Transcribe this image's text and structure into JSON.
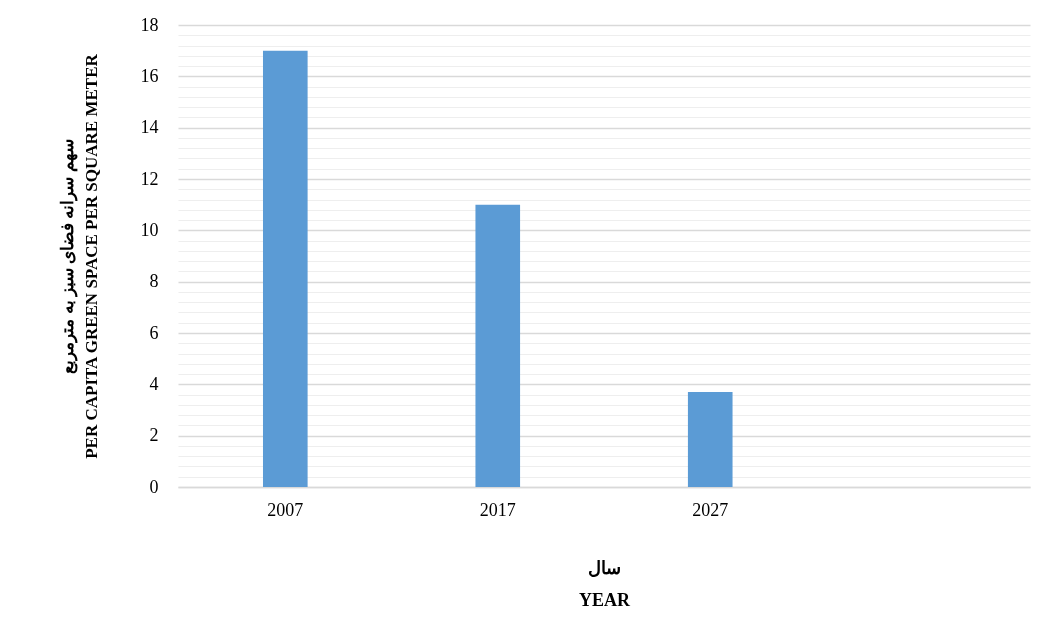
{
  "chart_data": {
    "type": "bar",
    "xlabel": "سال\nYEAR",
    "ylabel": "سهم سرانه فضای سبز به مترمربع\nPER CAPITA GREEN SPACE PER SQUARE METER",
    "categories": [
      "2007",
      "2017",
      "2027",
      null
    ],
    "values": [
      17,
      11,
      3.7,
      null
    ],
    "color": "#5b9bd5",
    "ylim": [
      0,
      18
    ],
    "yticks": [
      0,
      {
        "value": 0.4,
        "label": null
      },
      {
        "value": 0.8,
        "label": null
      },
      {
        "value": 1.2,
        "label": null
      },
      {
        "value": 1.6,
        "label": null
      },
      2,
      {
        "value": 2.4,
        "label": null
      },
      {
        "value": 2.8,
        "label": null
      },
      {
        "value": 3.2,
        "label": null
      },
      {
        "value": 3.6,
        "label": null
      },
      4,
      {
        "value": 4.4,
        "label": null
      },
      {
        "value": 4.8,
        "label": null
      },
      {
        "value": 5.2,
        "label": null
      },
      {
        "value": 5.6,
        "label": null
      },
      6,
      {
        "value": 6.4,
        "label": null
      },
      {
        "value": 6.8,
        "label": null
      },
      {
        "value": 7.2,
        "label": null
      },
      {
        "value": 7.6,
        "label": null
      },
      8,
      {
        "value": 8.4,
        "label": null
      },
      {
        "value": 8.8,
        "label": null
      },
      {
        "value": 9.2,
        "label": null
      },
      {
        "value": 9.6,
        "label": null
      },
      10,
      {
        "value": 10.4,
        "label": null
      },
      {
        "value": 10.8,
        "label": null
      },
      {
        "value": 11.2,
        "label": null
      },
      {
        "value": 11.6,
        "label": null
      },
      12,
      {
        "value": 12.4,
        "label": null
      },
      {
        "value": 12.8,
        "label": null
      },
      {
        "value": 13.2,
        "label": null
      },
      {
        "value": 13.6,
        "label": null
      },
      14,
      {
        "value": 14.4,
        "label": null
      },
      {
        "value": 14.8,
        "label": null
      },
      {
        "value": 15.2,
        "label": null
      },
      {
        "value": 15.6,
        "label": null
      },
      16,
      {
        "value": 16.4,
        "label": null
      },
      {
        "value": 16.8,
        "label": null
      },
      {
        "value": 17.2,
        "label": null
      },
      {
        "value": 17.6,
        "label": null
      },
      18
    ],
    "grid": "y"
  }
}
